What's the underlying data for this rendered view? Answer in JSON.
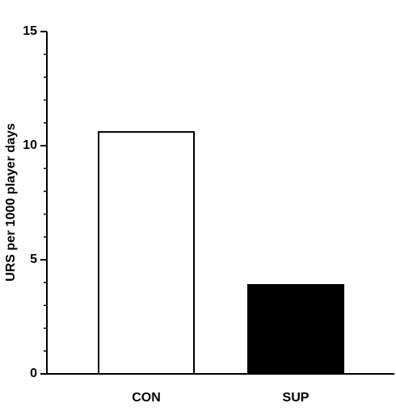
{
  "chart_data": {
    "type": "bar",
    "y_label": "URS per 1000 player days",
    "categories": [
      "CON",
      "SUP"
    ],
    "values": [
      10.6,
      3.9
    ],
    "colors": [
      "#ffffff",
      "#000000"
    ],
    "ylim": [
      0,
      15
    ],
    "yticks": [
      0,
      5,
      10,
      15
    ],
    "grid": false
  }
}
